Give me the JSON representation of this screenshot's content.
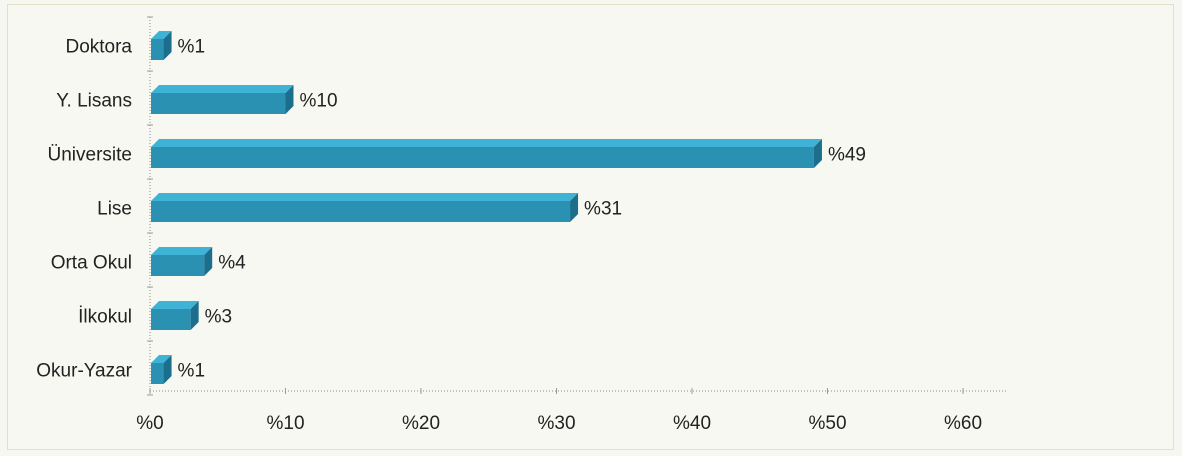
{
  "chart_data": {
    "type": "bar",
    "orientation": "horizontal",
    "style": "3d",
    "bar_color": "#2b91b3",
    "categories": [
      "Doktora",
      "Y. Lisans",
      "Üniversite",
      "Lise",
      "Orta Okul",
      "İlkokul",
      "Okur-Yazar"
    ],
    "values": [
      1,
      10,
      49,
      31,
      4,
      3,
      1
    ],
    "value_labels": [
      "%1",
      "%10",
      "%49",
      "%31",
      "%4",
      "%3",
      "%1"
    ],
    "xlim": [
      0,
      63
    ],
    "xticks": [
      0,
      10,
      20,
      30,
      40,
      50,
      60
    ],
    "xtick_labels": [
      "%0",
      "%10",
      "%20",
      "%30",
      "%40",
      "%50",
      "%60"
    ],
    "grid": false,
    "title": "",
    "xlabel": "",
    "ylabel": ""
  }
}
